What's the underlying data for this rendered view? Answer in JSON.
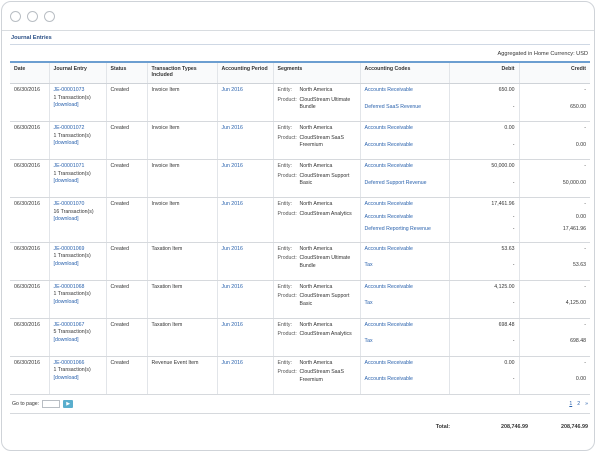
{
  "window": {
    "title": "Journal Entries"
  },
  "aggregation": "Aggregated in Home Currency: USD",
  "columns": [
    "Date",
    "Journal Entry",
    "Status",
    "Transaction Types Included",
    "Accounting Period",
    "Segments",
    "Accounting Codes",
    "Debit",
    "Credit"
  ],
  "segment_labels": {
    "entity": "Entity:",
    "product": "Product:"
  },
  "rows": [
    {
      "date": "06/30/2016",
      "entry": "JE-00001073",
      "txns": "1 Transaction(s)",
      "download": "[download]",
      "status": "Created",
      "type": "Invoice Item",
      "period": "Jun 2016",
      "entity": "North America",
      "product": "CloudStream Ultimate Bundle",
      "codes": [
        "Accounts Receivable",
        "Deferred SaaS Revenue"
      ],
      "debits": [
        "650.00",
        "-"
      ],
      "credits": [
        "-",
        "650.00"
      ]
    },
    {
      "date": "06/30/2016",
      "entry": "JE-00001072",
      "txns": "1 Transaction(s)",
      "download": "[download]",
      "status": "Created",
      "type": "Invoice Item",
      "period": "Jun 2016",
      "entity": "North America",
      "product": "CloudStream SaaS Freemium",
      "codes": [
        "Accounts Receivable",
        "Accounts Receivable"
      ],
      "debits": [
        "0.00",
        "-"
      ],
      "credits": [
        "-",
        "0.00"
      ]
    },
    {
      "date": "06/30/2016",
      "entry": "JE-00001071",
      "txns": "1 Transaction(s)",
      "download": "[download]",
      "status": "Created",
      "type": "Invoice Item",
      "period": "Jun 2016",
      "entity": "North America",
      "product": "CloudStream Support Basic",
      "codes": [
        "Accounts Receivable",
        "Deferred Support Revenue"
      ],
      "debits": [
        "50,000.00",
        "-"
      ],
      "credits": [
        "-",
        "50,000.00"
      ]
    },
    {
      "date": "06/30/2016",
      "entry": "JE-00001070",
      "txns": "16 Transaction(s)",
      "download": "[download]",
      "status": "Created",
      "type": "Invoice Item",
      "period": "Jun 2016",
      "entity": "North America",
      "product": "CloudStream Analytics",
      "codes": [
        "Accounts Receivable",
        "Accounts Receivable",
        "Deferred Reporting Revenue"
      ],
      "debits": [
        "17,461.96",
        "-",
        "-"
      ],
      "credits": [
        "-",
        "0.00",
        "17,461.96"
      ]
    },
    {
      "date": "06/30/2016",
      "entry": "JE-00001069",
      "txns": "1 Transaction(s)",
      "download": "[download]",
      "status": "Created",
      "type": "Taxation Item",
      "period": "Jun 2016",
      "entity": "North America",
      "product": "CloudStream Ultimate Bundle",
      "codes": [
        "Accounts Receivable",
        "Tax"
      ],
      "debits": [
        "53.63",
        "-"
      ],
      "credits": [
        "-",
        "53.63"
      ]
    },
    {
      "date": "06/30/2016",
      "entry": "JE-00001068",
      "txns": "1 Transaction(s)",
      "download": "[download]",
      "status": "Created",
      "type": "Taxation Item",
      "period": "Jun 2016",
      "entity": "North America",
      "product": "CloudStream Support Basic",
      "codes": [
        "Accounts Receivable",
        "Tax"
      ],
      "debits": [
        "4,125.00",
        "-"
      ],
      "credits": [
        "-",
        "4,125.00"
      ]
    },
    {
      "date": "06/30/2016",
      "entry": "JE-00001067",
      "txns": "5 Transaction(s)",
      "download": "[download]",
      "status": "Created",
      "type": "Taxation Item",
      "period": "Jun 2016",
      "entity": "North America",
      "product": "CloudStream Analytics",
      "codes": [
        "Accounts Receivable",
        "Tax"
      ],
      "debits": [
        "698.48",
        "-"
      ],
      "credits": [
        "-",
        "698.48"
      ]
    },
    {
      "date": "06/30/2016",
      "entry": "JE-00001066",
      "txns": "1 Transaction(s)",
      "download": "[download]",
      "status": "Created",
      "type": "Revenue Event Item",
      "period": "Jun 2016",
      "entity": "North America",
      "product": "CloudStream SaaS Freemium",
      "codes": [
        "Accounts Receivable",
        "Accounts Receivable"
      ],
      "debits": [
        "0.00",
        "-"
      ],
      "credits": [
        "-",
        "0.00"
      ]
    }
  ],
  "pager": {
    "label": "Go to page:",
    "go_icon": "arrow-right-icon",
    "pages": [
      "1",
      "2"
    ],
    "next": "»"
  },
  "totals": {
    "label": "Total:",
    "debit": "208,746.99",
    "credit": "208,746.99"
  },
  "colors": {
    "link": "#2a62ad",
    "header_border": "#6c9ed0",
    "go_button": "#5aaecd"
  }
}
